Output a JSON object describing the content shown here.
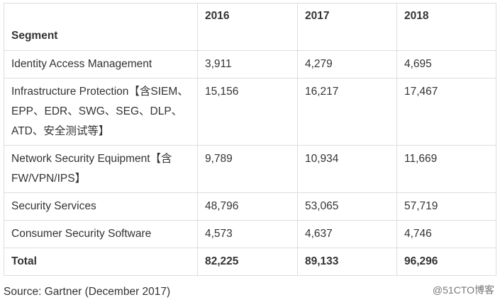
{
  "table": {
    "headers": [
      "Segment",
      "2016",
      "2017",
      "2018"
    ],
    "rows": [
      [
        "Identity Access Management",
        "3,911",
        "4,279",
        "4,695"
      ],
      [
        "Infrastructure Protection【含SIEM、EPP、EDR、SWG、SEG、DLP、ATD、安全测试等】",
        "15,156",
        "16,217",
        "17,467"
      ],
      [
        "Network Security Equipment【含FW/VPN/IPS】",
        "9,789",
        "10,934",
        "11,669"
      ],
      [
        "Security Services",
        "48,796",
        "53,065",
        "57,719"
      ],
      [
        "Consumer Security Software",
        "4,573",
        "4,637",
        "4,746"
      ]
    ],
    "total": [
      "Total",
      "82,225",
      "89,133",
      "96,296"
    ]
  },
  "source": "Source: Gartner (December 2017)",
  "watermark": "@51CTO博客"
}
